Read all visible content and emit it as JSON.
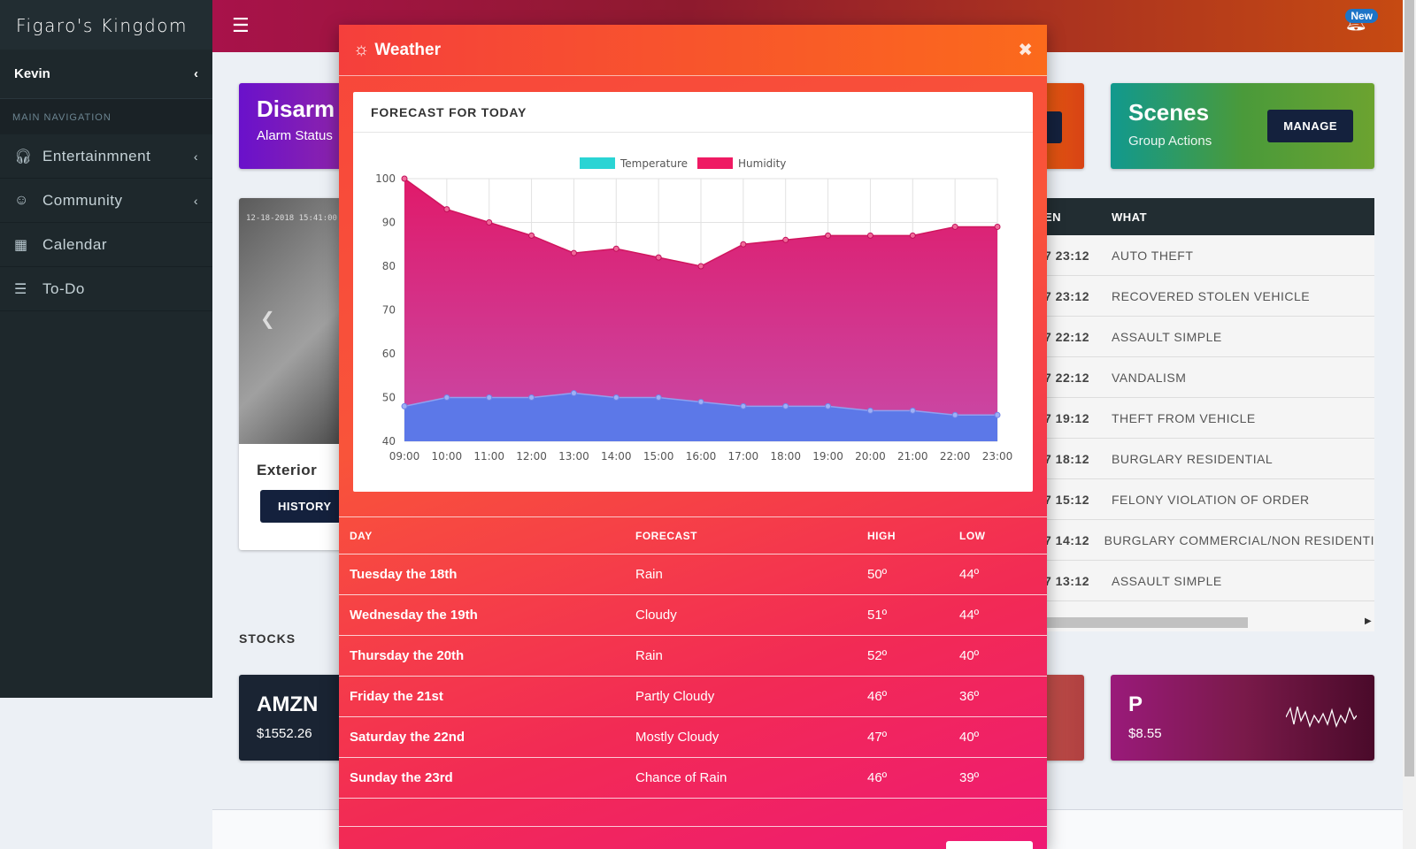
{
  "app": {
    "brand": "Figaro's Kingdom"
  },
  "sidebar": {
    "user": "Kevin",
    "section_header": "MAIN NAVIGATION",
    "items": [
      {
        "label": "Entertainmnent",
        "icon": "headphones-icon",
        "has_children": true
      },
      {
        "label": "Community",
        "icon": "user-icon",
        "has_children": true
      },
      {
        "label": "Calendar",
        "icon": "calendar-icon",
        "has_children": false
      },
      {
        "label": "To-Do",
        "icon": "list-icon",
        "has_children": false
      }
    ]
  },
  "header": {
    "badge": "New"
  },
  "background": {
    "alarm": {
      "title": "Disarm",
      "subtitle": "Alarm Status"
    },
    "scenes": {
      "title": "Scenes",
      "subtitle": "Group Actions",
      "button": "MANAGE"
    },
    "camera": {
      "title": "Exterior",
      "button": "HISTORY",
      "timestamp": "12-18-2018 15:41:00"
    },
    "crimes": {
      "headers": [
        "EN",
        "WHAT"
      ],
      "rows": [
        {
          "when": "7 23:12",
          "what": "AUTO THEFT"
        },
        {
          "when": "7 23:12",
          "what": "RECOVERED STOLEN VEHICLE"
        },
        {
          "when": "7 22:12",
          "what": "ASSAULT SIMPLE"
        },
        {
          "when": "7 22:12",
          "what": "VANDALISM"
        },
        {
          "when": "7 19:12",
          "what": "THEFT FROM VEHICLE"
        },
        {
          "when": "7 18:12",
          "what": "BURGLARY RESIDENTIAL"
        },
        {
          "when": "7 15:12",
          "what": "FELONY VIOLATION OF ORDER"
        },
        {
          "when": "7 14:12",
          "what": "BURGLARY COMMERCIAL/NON RESIDENTI"
        },
        {
          "when": "7 13:12",
          "what": "ASSAULT SIMPLE"
        }
      ]
    },
    "stocks": {
      "title": "STOCKS",
      "amzn": {
        "symbol": "AMZN",
        "price": "$1552.26"
      },
      "p": {
        "symbol": "P",
        "price": "$8.55"
      }
    }
  },
  "modal": {
    "title": "Weather",
    "close": "✖",
    "chart_title": "FORECAST FOR TODAY",
    "table": {
      "headers": {
        "day": "DAY",
        "forecast": "FORECAST",
        "high": "HIGH",
        "low": "LOW"
      },
      "rows": [
        {
          "day": "Tuesday the 18th",
          "forecast": "Rain",
          "high": "50º",
          "low": "44º"
        },
        {
          "day": "Wednesday the 19th",
          "forecast": "Cloudy",
          "high": "51º",
          "low": "44º"
        },
        {
          "day": "Thursday the 20th",
          "forecast": "Rain",
          "high": "52º",
          "low": "40º"
        },
        {
          "day": "Friday the 21st",
          "forecast": "Partly Cloudy",
          "high": "46º",
          "low": "36º"
        },
        {
          "day": "Saturday the 22nd",
          "forecast": "Mostly Cloudy",
          "high": "47º",
          "low": "40º"
        },
        {
          "day": "Sunday the 23rd",
          "forecast": "Chance of Rain",
          "high": "46º",
          "low": "39º"
        }
      ]
    }
  },
  "chart_data": {
    "type": "area",
    "x": [
      "09:00",
      "10:00",
      "11:00",
      "12:00",
      "13:00",
      "14:00",
      "15:00",
      "16:00",
      "17:00",
      "18:00",
      "19:00",
      "20:00",
      "21:00",
      "22:00",
      "23:00"
    ],
    "series": [
      {
        "name": "Temperature",
        "color": "#2ad4d4",
        "values": [
          48,
          50,
          50,
          50,
          51,
          50,
          50,
          49,
          48,
          48,
          48,
          47,
          47,
          46,
          46
        ]
      },
      {
        "name": "Humidity",
        "color": "#ef1a63",
        "values": [
          100,
          93,
          90,
          87,
          83,
          84,
          82,
          80,
          85,
          86,
          87,
          87,
          87,
          89,
          89
        ]
      }
    ],
    "ylim": [
      40,
      100
    ],
    "yticks": [
      40,
      50,
      60,
      70,
      80,
      90,
      100
    ],
    "legend": "top-center",
    "grid": true
  }
}
